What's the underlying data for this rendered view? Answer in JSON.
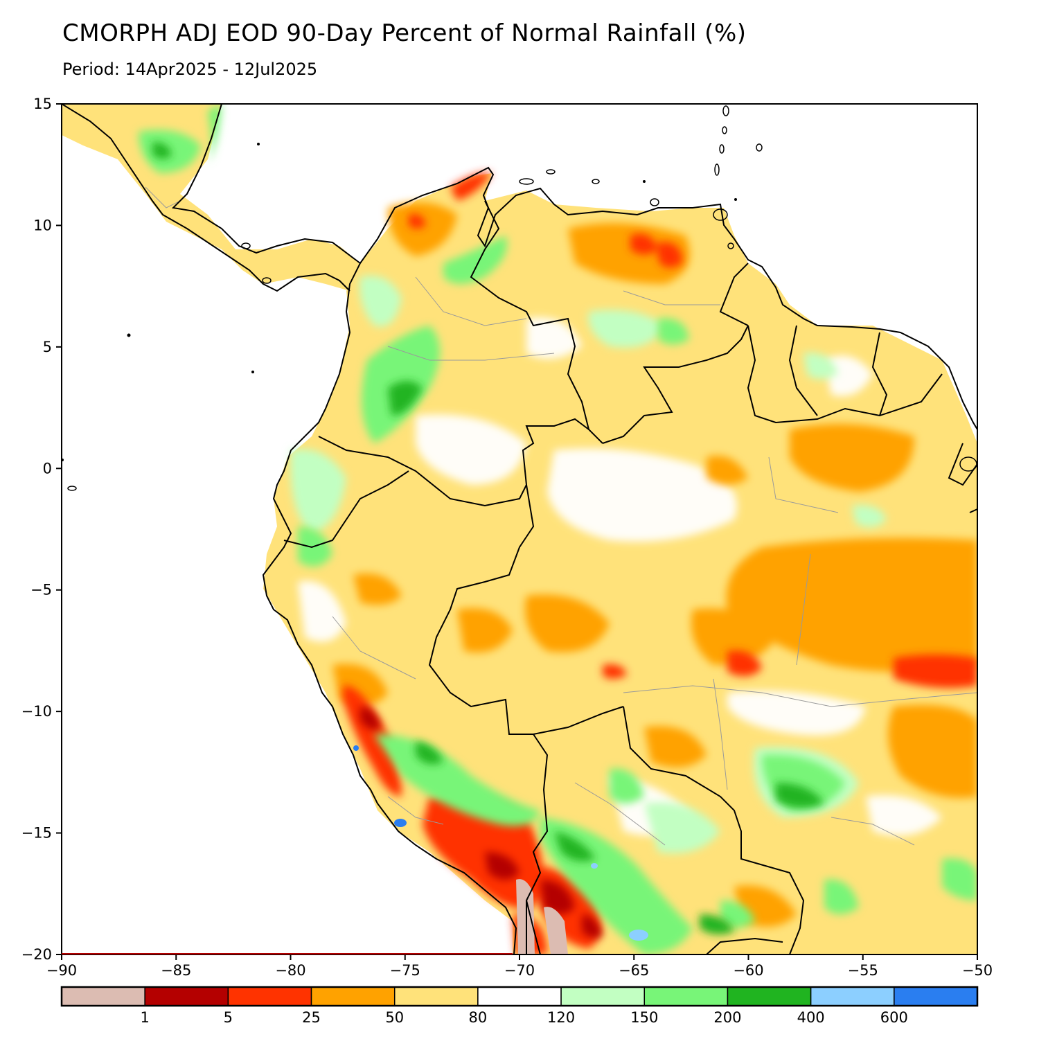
{
  "title": "CMORPH ADJ EOD 90-Day Percent of Normal Rainfall (%)",
  "subtitle": "Period: 14Apr2025 - 12Jul2025",
  "map": {
    "lon_range": [
      -90,
      -50
    ],
    "lat_range": [
      -20,
      15
    ],
    "x_ticks": [
      {
        "value": -90,
        "label": "−90"
      },
      {
        "value": -85,
        "label": "−85"
      },
      {
        "value": -80,
        "label": "−80"
      },
      {
        "value": -75,
        "label": "−75"
      },
      {
        "value": -70,
        "label": "−70"
      },
      {
        "value": -65,
        "label": "−65"
      },
      {
        "value": -60,
        "label": "−60"
      },
      {
        "value": -55,
        "label": "−55"
      },
      {
        "value": -50,
        "label": "−50"
      }
    ],
    "y_ticks": [
      {
        "value": 15,
        "label": "15"
      },
      {
        "value": 10,
        "label": "10"
      },
      {
        "value": 5,
        "label": "5"
      },
      {
        "value": 0,
        "label": "0"
      },
      {
        "value": -5,
        "label": "−5"
      },
      {
        "value": -10,
        "label": "−10"
      },
      {
        "value": -15,
        "label": "−15"
      },
      {
        "value": -20,
        "label": "−20"
      }
    ]
  },
  "colorbar": {
    "colors": [
      "#dcbcb2",
      "#b40000",
      "#ff3300",
      "#ffa200",
      "#ffe27a",
      "#ffffff",
      "#c2ffc2",
      "#78f578",
      "#20b420",
      "#8ccfff",
      "#2a7ef0"
    ],
    "labels": [
      "1",
      "5",
      "25",
      "50",
      "80",
      "120",
      "150",
      "200",
      "400",
      "600"
    ]
  },
  "colors": {
    "ocean": "#ffffff",
    "coast": "#000000",
    "internal_border": "#9a9a9a"
  }
}
